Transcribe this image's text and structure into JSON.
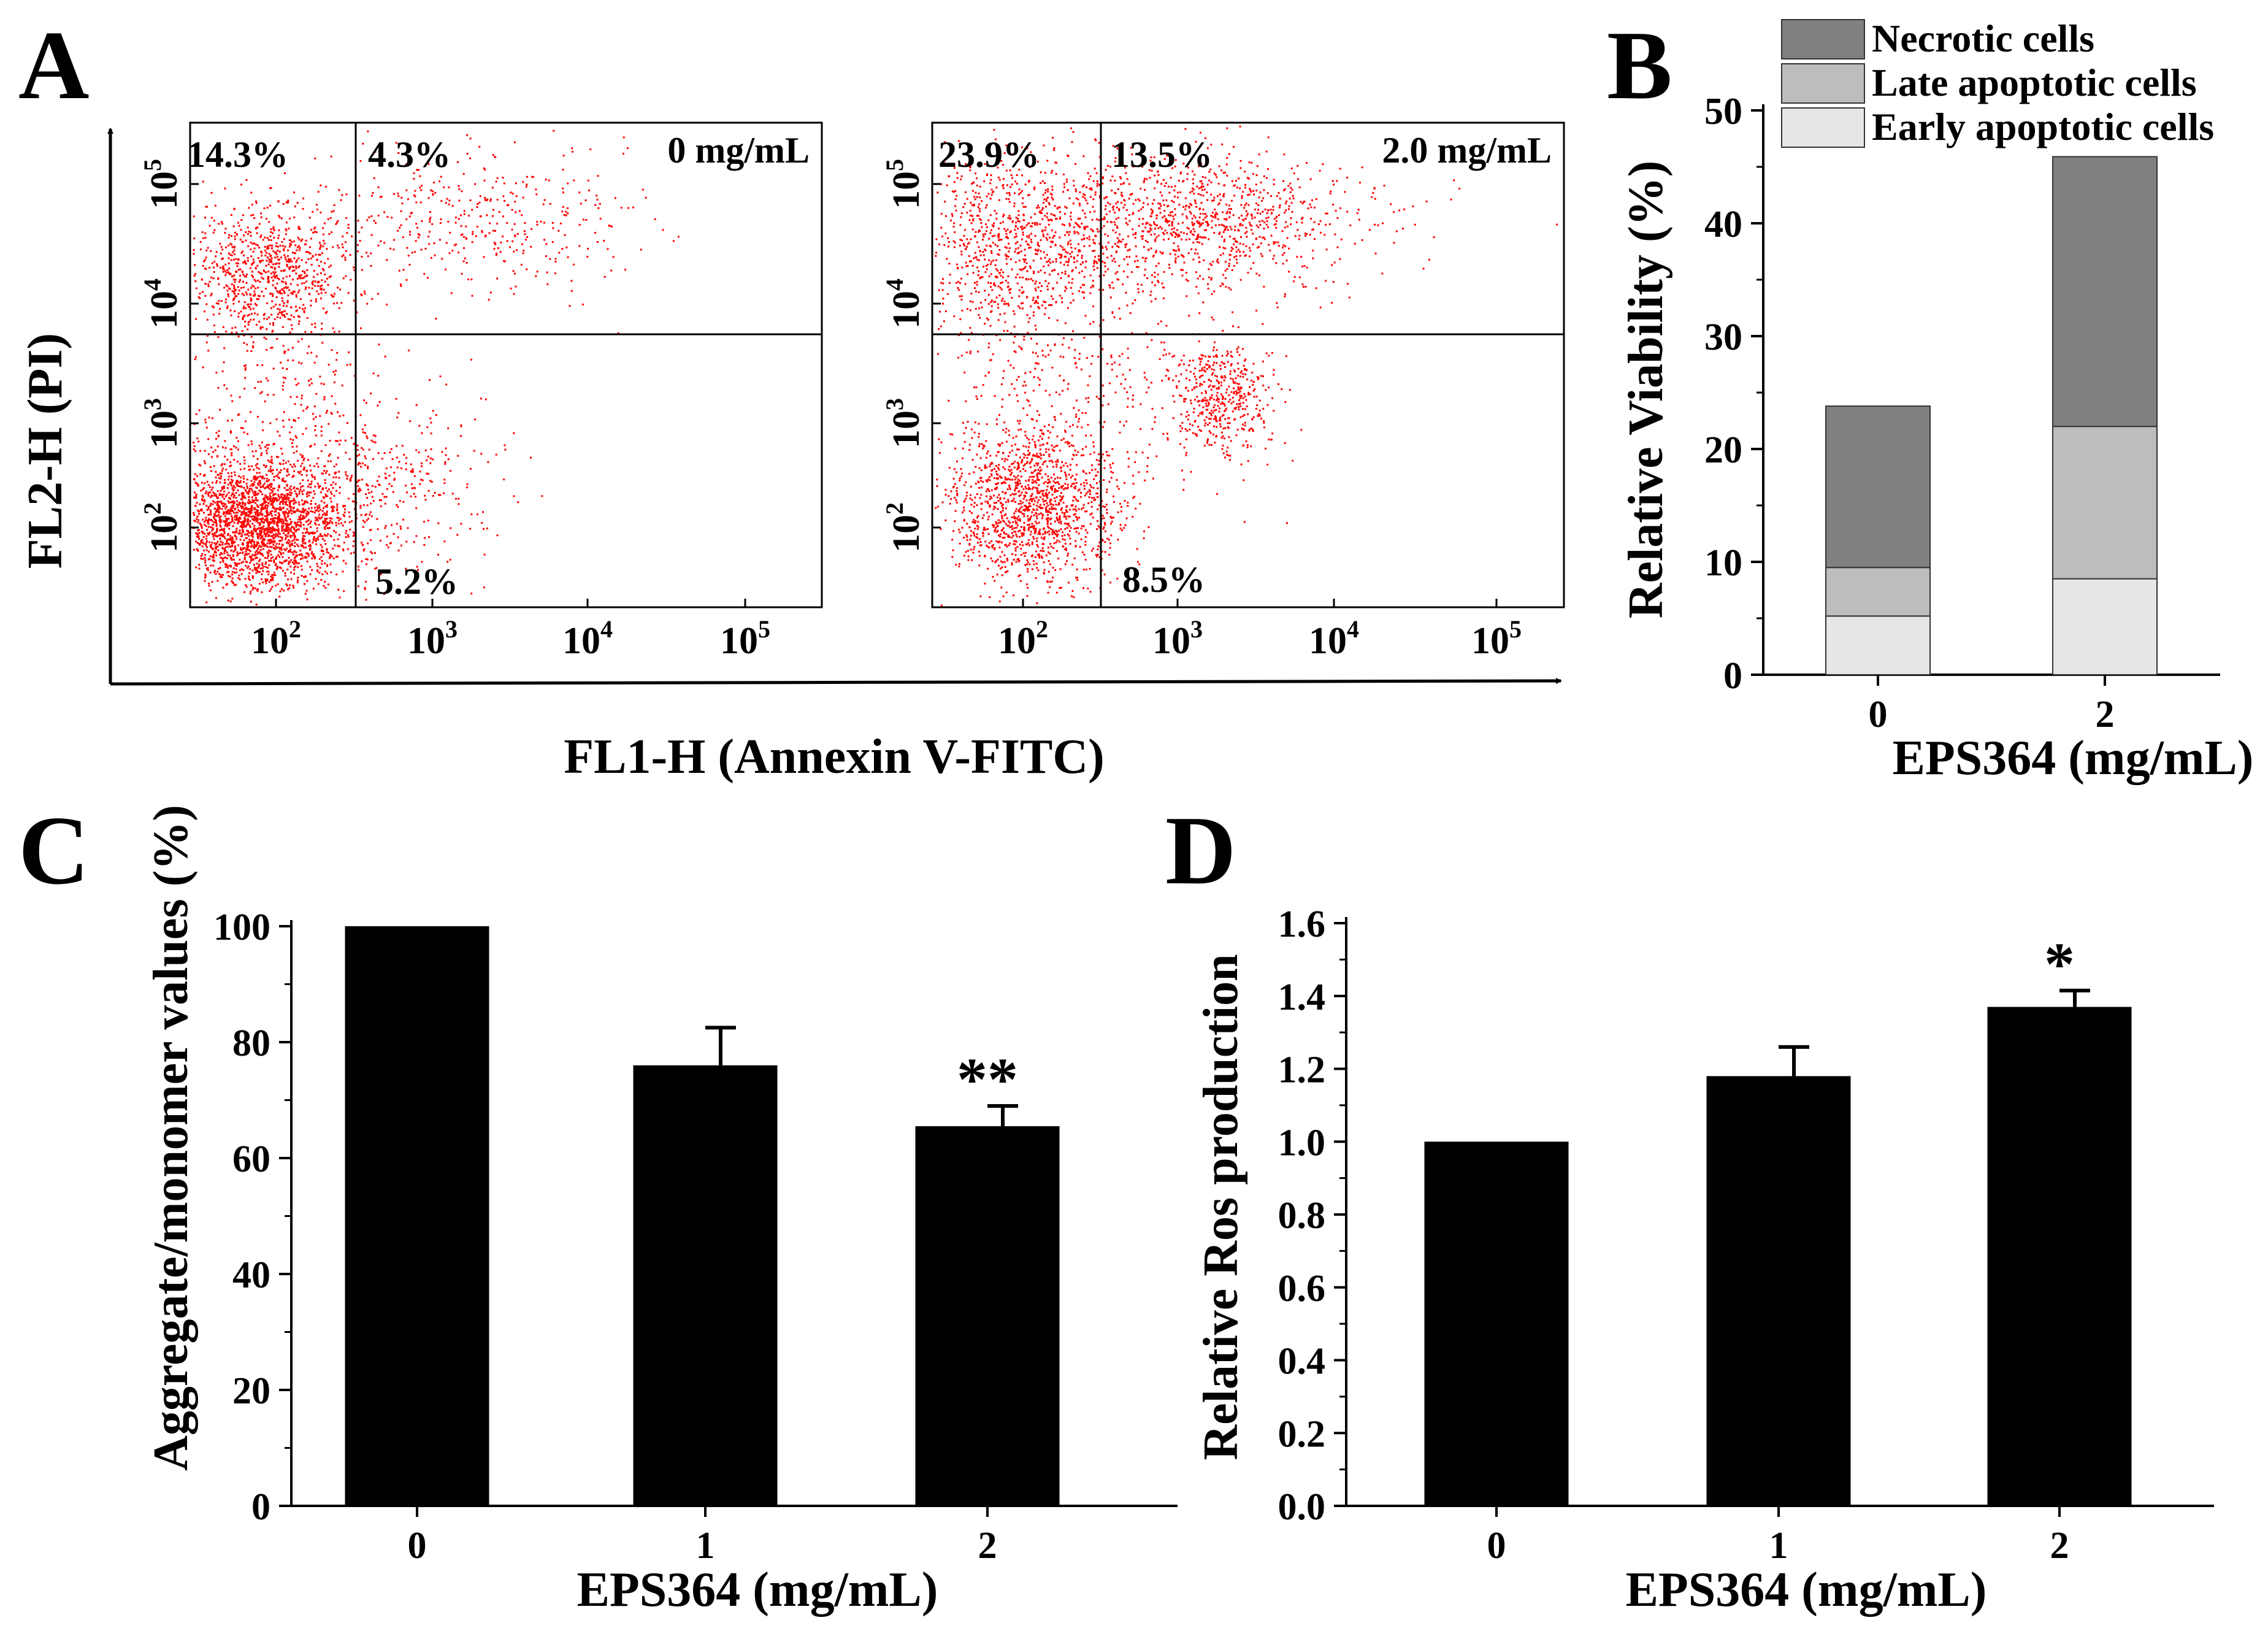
{
  "panels": {
    "A": {
      "letter": "A"
    },
    "B": {
      "letter": "B"
    },
    "C": {
      "letter": "C"
    },
    "D": {
      "letter": "D"
    }
  },
  "chart_data": [
    {
      "panel": "A",
      "type": "scatter",
      "title": "",
      "xlabel": "FL1-H (Annexin V-FITC)",
      "ylabel": "FL2-H (PI)",
      "axis_scale": "log",
      "x_tick_labels": [
        "10",
        "10",
        "10",
        "10"
      ],
      "x_tick_exponents": [
        "2",
        "3",
        "4",
        "5"
      ],
      "y_tick_labels": [
        "10",
        "10",
        "10",
        "10"
      ],
      "y_tick_exponents": [
        "2",
        "3",
        "4",
        "5"
      ],
      "plots": [
        {
          "condition": "0 mg/mL",
          "quadrants": {
            "upper_left": "14.3%",
            "upper_right": "4.3%",
            "lower_right": "5.2%"
          }
        },
        {
          "condition": "2.0 mg/mL",
          "quadrants": {
            "upper_left": "23.9%",
            "upper_right": "13.5%",
            "lower_right": "8.5%"
          }
        }
      ],
      "point_color": "#ff0000"
    },
    {
      "panel": "B",
      "type": "bar",
      "stacked": true,
      "categories": [
        "0",
        "2"
      ],
      "series": [
        {
          "name": "Early apoptotic cells",
          "values": [
            5.2,
            8.5
          ],
          "color": "#e6e6e6"
        },
        {
          "name": "Late apoptotic cells",
          "values": [
            4.3,
            13.5
          ],
          "color": "#bdbdbd"
        },
        {
          "name": "Necrotic cells",
          "values": [
            14.3,
            23.9
          ],
          "color": "#808080"
        }
      ],
      "legend_order": [
        "Necrotic cells",
        "Late apoptotic cells",
        "Early apoptotic cells"
      ],
      "xlabel": "EPS364 (mg/mL)",
      "ylabel": "Relative Viability (%)",
      "ylim": [
        0,
        50
      ],
      "yticks": [
        "0",
        "10",
        "20",
        "30",
        "40",
        "50"
      ],
      "legend_position": "top-right"
    },
    {
      "panel": "C",
      "type": "bar",
      "categories": [
        "0",
        "1",
        "2"
      ],
      "values": [
        100,
        76,
        65.5
      ],
      "errors": [
        0,
        6.5,
        3.5
      ],
      "annotations": [
        "",
        "",
        "**"
      ],
      "xlabel": "EPS364 (mg/mL)",
      "ylabel": "Aggregate/monomer values (%)",
      "ylim": [
        0,
        100
      ],
      "yticks": [
        "0",
        "20",
        "40",
        "60",
        "80",
        "100"
      ],
      "bar_color": "#000000"
    },
    {
      "panel": "D",
      "type": "bar",
      "categories": [
        "0",
        "1",
        "2"
      ],
      "values": [
        1.0,
        1.18,
        1.37
      ],
      "errors": [
        0,
        0.08,
        0.045
      ],
      "annotations": [
        "",
        "",
        "*"
      ],
      "xlabel": "EPS364 (mg/mL)",
      "ylabel": "Relative Ros production",
      "ylim": [
        0,
        1.6
      ],
      "yticks": [
        "0.0",
        "0.2",
        "0.4",
        "0.6",
        "0.8",
        "1.0",
        "1.2",
        "1.4",
        "1.6"
      ],
      "bar_color": "#000000"
    }
  ]
}
